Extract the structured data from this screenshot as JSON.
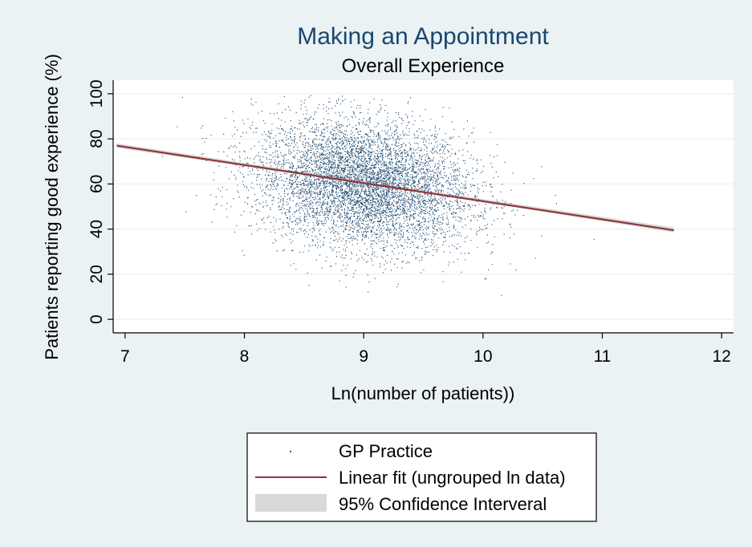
{
  "chart_data": {
    "type": "scatter",
    "title": "Making an Appointment",
    "subtitle": "Overall Experience",
    "xlabel": "Ln(number of patients))",
    "ylabel": "Patients reporting good experience (%)",
    "xlim": [
      6.9,
      12.1
    ],
    "ylim": [
      -6,
      106
    ],
    "xticks": [
      7,
      8,
      9,
      10,
      11,
      12
    ],
    "yticks": [
      0,
      20,
      40,
      60,
      80,
      100
    ],
    "grid": true,
    "legend_position": "bottom",
    "series": [
      {
        "name": "GP Practice",
        "kind": "scatter",
        "color": "#1a476f",
        "description_stats": {
          "n_points": 6500,
          "x_center": 9.0,
          "x_spread": 0.45,
          "y_center": 60.0,
          "y_spread": 14.0,
          "x_range": [
            6.9,
            11.7
          ],
          "y_range": [
            10,
            100
          ]
        }
      },
      {
        "name": "Linear fit (ungrouped ln data)",
        "kind": "line",
        "color": "#90353b",
        "x": [
          6.93,
          11.6
        ],
        "y": [
          77.0,
          39.5
        ]
      },
      {
        "name": "95% Confidence Interveral",
        "kind": "band",
        "color": "#d9d9d9",
        "x": [
          6.93,
          9.1,
          11.6
        ],
        "y_lower": [
          76.0,
          59.4,
          38.5
        ],
        "y_upper": [
          78.0,
          60.4,
          40.7
        ]
      }
    ]
  },
  "legend": {
    "items": [
      {
        "label": "GP Practice"
      },
      {
        "label": "Linear fit (ungrouped ln data)"
      },
      {
        "label": "95% Confidence Interveral"
      }
    ]
  },
  "colors": {
    "background": "#eaf2f3",
    "plot_background": "#ffffff",
    "grid": "#eaf2f3",
    "points": "#1a476f",
    "fit_line": "#90353b",
    "ci_band": "#d9d9d9"
  }
}
